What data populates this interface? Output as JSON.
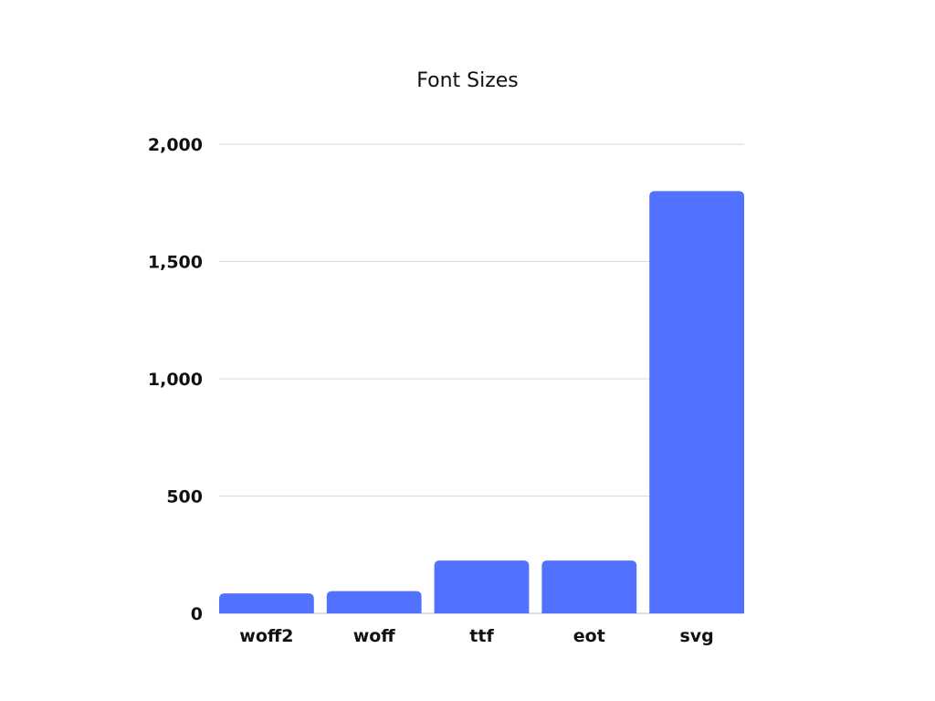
{
  "chart_data": {
    "type": "bar",
    "title": "Font Sizes",
    "categories": [
      "woff2",
      "woff",
      "ttf",
      "eot",
      "svg"
    ],
    "values": [
      85,
      95,
      225,
      225,
      1800
    ],
    "xlabel": "",
    "ylabel": "",
    "ylim": [
      0,
      2000
    ],
    "yticks": [
      0,
      500,
      1000,
      1500,
      2000
    ],
    "ytick_labels": [
      "0",
      "500",
      "1,000",
      "1,500",
      "2,000"
    ],
    "grid": true,
    "legend": "none",
    "bar_color": "#5271ff"
  }
}
